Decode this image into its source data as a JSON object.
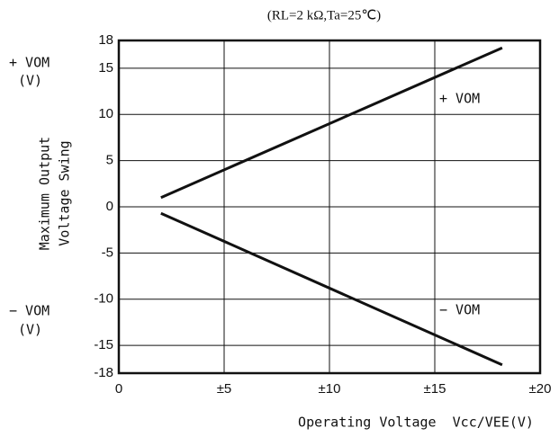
{
  "chart_data": {
    "type": "line",
    "title": "(RL=2 kΩ,Ta=25℃)",
    "y_label": [
      "Maximum Output",
      "Voltage Swing"
    ],
    "side_labels": [
      [
        "+ VOM",
        "(V)"
      ],
      [
        "− VOM",
        "(V)"
      ]
    ],
    "x_label": "Operating Voltage  Vcc/VEE(V)",
    "x": [
      2,
      18.2
    ],
    "series": [
      {
        "name": "+ VOM",
        "color": "#111111",
        "values": [
          1,
          17.2
        ]
      },
      {
        "name": "− VOM",
        "color": "#111111",
        "values": [
          -0.7,
          -17.1
        ]
      }
    ],
    "xlim": [
      0,
      20
    ],
    "xticks": [
      0,
      {
        "value": 5,
        "label": "±5"
      },
      {
        "value": 10,
        "label": "±10"
      },
      {
        "value": 15,
        "label": "±15"
      },
      {
        "value": 20,
        "label": "±20"
      }
    ],
    "ylim": [
      -18,
      18
    ],
    "yticks": [
      18,
      15,
      10,
      5,
      0,
      -5,
      -10,
      -15,
      -18
    ],
    "grid": true
  }
}
